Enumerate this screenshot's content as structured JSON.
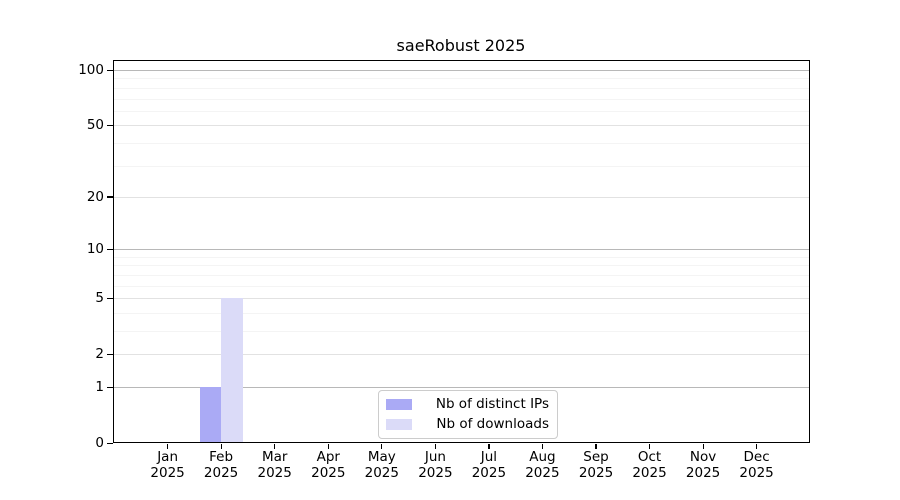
{
  "chart_data": {
    "type": "bar",
    "title": "saeRobust 2025",
    "xlabel": "",
    "ylabel": "",
    "x_tick_year": "2025",
    "categories": [
      "Jan",
      "Feb",
      "Mar",
      "Apr",
      "May",
      "Jun",
      "Jul",
      "Aug",
      "Sep",
      "Oct",
      "Nov",
      "Dec"
    ],
    "series": [
      {
        "name": "Nb of distinct IPs",
        "color": "#aaaaf5",
        "values": [
          0,
          1,
          0,
          0,
          0,
          0,
          0,
          0,
          0,
          0,
          0,
          0
        ]
      },
      {
        "name": "Nb of downloads",
        "color": "#dbdbf8",
        "values": [
          0,
          5,
          0,
          0,
          0,
          0,
          0,
          0,
          0,
          0,
          0,
          0
        ]
      }
    ],
    "y_axis": {
      "scale": "log1p",
      "ticks": [
        0,
        1,
        2,
        5,
        10,
        20,
        50,
        100
      ],
      "minor_ticks": [
        3,
        4,
        6,
        7,
        8,
        9,
        30,
        40,
        60,
        70,
        80,
        90
      ],
      "decade_ticks": [
        1,
        10,
        100
      ]
    },
    "grid": true,
    "legend_position": "lower-center",
    "colors": {
      "gridline_decade": "#b8b8b8",
      "gridline_major": "#e2e2e2",
      "gridline_minor": "#f4f4f4",
      "axis": "#000000",
      "background": "#ffffff"
    }
  }
}
